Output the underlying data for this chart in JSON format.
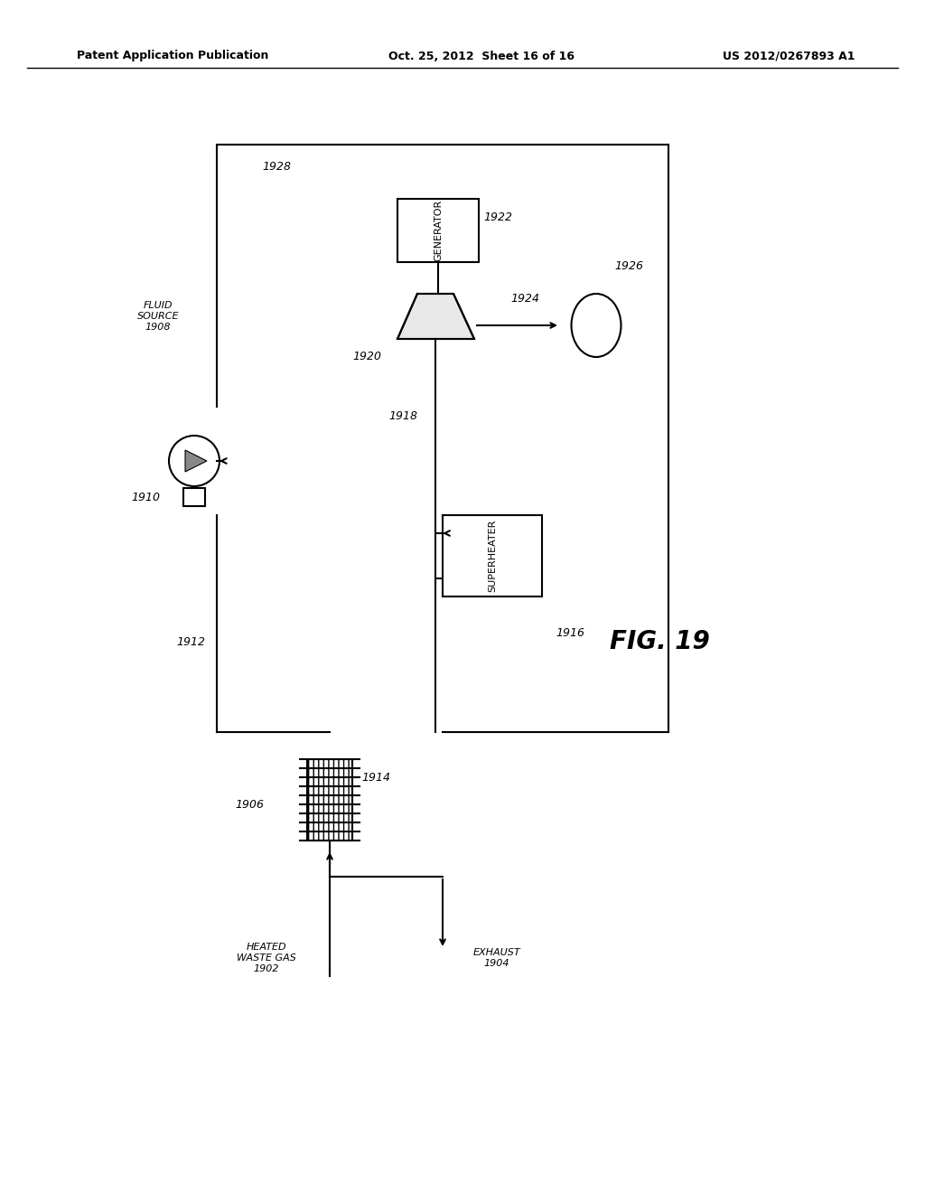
{
  "title_left": "Patent Application Publication",
  "title_center": "Oct. 25, 2012  Sheet 16 of 16",
  "title_right": "US 2012/0267893 A1",
  "fig_label": "FIG. 19",
  "background_color": "#ffffff",
  "line_color": "#000000",
  "text_color": "#000000",
  "labels": {
    "1902": "HEATED\nWASTE GAS\n1902",
    "1904": "EXHAUST\n1904",
    "1906": "1906",
    "1908": "FLUID\nSOURCE\n1908",
    "1910": "1910",
    "1912": "1912",
    "1914": "1914",
    "1916": "1916",
    "1918": "1918",
    "1920": "1920",
    "1922": "1922",
    "1924": "1924",
    "1926": "1926",
    "1928": "1928"
  }
}
